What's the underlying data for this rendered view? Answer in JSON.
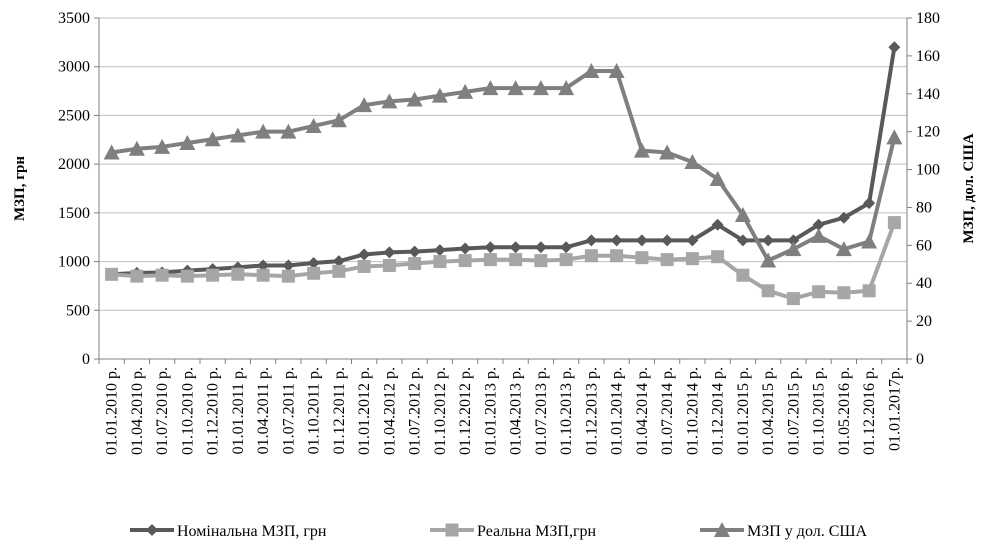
{
  "chart_data": {
    "type": "line",
    "title": "",
    "categories": [
      "01.01.2010 р.",
      "01.04.2010 р.",
      "01.07.2010 р.",
      "01.10.2010 р.",
      "01.12.2010 р.",
      "01.01.2011 р.",
      "01.04.2011 р.",
      "01.07.2011 р.",
      "01.10.2011 р.",
      "01.12.2011 р.",
      "01.01.2012 р.",
      "01.04.2012 р.",
      "01.07.2012 р.",
      "01.10.2012 р.",
      "01.12.2012 р.",
      "01.01.2013 р.",
      "01.04.2013 р.",
      "01.07.2013 р.",
      "01.10.2013 р.",
      "01.12.2013 р.",
      "01.01.2014 р.",
      "01.04.2014 р.",
      "01.07.2014 р.",
      "01.10.2014 р.",
      "01.12.2014 р.",
      "01.01.2015 р.",
      "01.04.2015 р.",
      "01.07.2015 р.",
      "01.10.2015 р.",
      "01.05.2016 р.",
      "01.12.2016 р.",
      "01.01.2017р."
    ],
    "ylabel": "МЗП, грн",
    "y2label": "МЗП, дол. США",
    "ylim": [
      0,
      3500
    ],
    "y2lim": [
      0,
      180
    ],
    "yticks": [
      "0",
      "500",
      "1000",
      "1500",
      "2000",
      "2500",
      "3000",
      "3500"
    ],
    "y2ticks": [
      "0",
      "20",
      "40",
      "60",
      "80",
      "100",
      "120",
      "140",
      "160",
      "180"
    ],
    "grid": "horizontal",
    "legend_position": "bottom",
    "series": [
      {
        "name": "Номінальна МЗП, грн",
        "axis": "left",
        "marker": "diamond",
        "color": "#595959",
        "values": [
          869,
          884,
          888,
          907,
          922,
          941,
          960,
          960,
          985,
          1004,
          1073,
          1094,
          1102,
          1118,
          1134,
          1147,
          1147,
          1147,
          1147,
          1218,
          1218,
          1218,
          1218,
          1218,
          1378,
          1218,
          1218,
          1218,
          1378,
          1450,
          1600,
          3200
        ]
      },
      {
        "name": "Реальна МЗП,грн",
        "axis": "left",
        "marker": "square",
        "color": "#a6a6a6",
        "values": [
          869,
          850,
          860,
          850,
          860,
          870,
          860,
          850,
          880,
          900,
          950,
          960,
          980,
          1000,
          1010,
          1020,
          1020,
          1010,
          1020,
          1060,
          1060,
          1040,
          1020,
          1030,
          1050,
          860,
          700,
          620,
          690,
          680,
          700,
          1400
        ]
      },
      {
        "name": "МЗП у дол. США",
        "axis": "right",
        "marker": "triangle",
        "color": "#7f7f7f",
        "values": [
          109,
          111,
          112,
          114,
          116,
          118,
          120,
          120,
          123,
          126,
          134,
          136,
          137,
          139,
          141,
          143,
          143,
          143,
          143,
          152,
          152,
          110,
          109,
          104,
          95,
          76,
          52,
          58,
          65,
          58,
          62,
          117
        ]
      }
    ]
  }
}
